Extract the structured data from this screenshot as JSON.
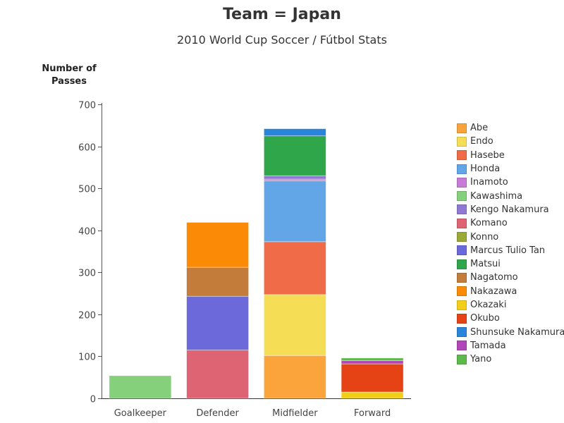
{
  "chart_data": {
    "type": "bar",
    "stacked": true,
    "title": "Team = Japan",
    "subtitle": "2010 World Cup Soccer / Fútbol Stats",
    "ylabel_line1": "Number of",
    "ylabel_line2": "Passes",
    "xlabel": "",
    "ylim": [
      0,
      700
    ],
    "yticks": [
      0,
      100,
      200,
      300,
      400,
      500,
      600,
      700
    ],
    "grid": false,
    "legend_position": "right",
    "categories": [
      "Goalkeeper",
      "Defender",
      "Midfielder",
      "Forward"
    ],
    "series": [
      {
        "name": "Abe",
        "color": "#FBA43C",
        "values": [
          0,
          0,
          102,
          0
        ]
      },
      {
        "name": "Endo",
        "color": "#F5DE55",
        "values": [
          0,
          0,
          145,
          0
        ]
      },
      {
        "name": "Hasebe",
        "color": "#F06C48",
        "values": [
          0,
          0,
          126,
          0
        ]
      },
      {
        "name": "Honda",
        "color": "#62A6E8",
        "values": [
          0,
          0,
          145,
          0
        ]
      },
      {
        "name": "Inamoto",
        "color": "#C77BD6",
        "values": [
          0,
          0,
          4,
          0
        ]
      },
      {
        "name": "Kawashima",
        "color": "#85D07A",
        "values": [
          54,
          0,
          0,
          0
        ]
      },
      {
        "name": "Kengo Nakamura",
        "color": "#9079D2",
        "values": [
          0,
          0,
          8,
          0
        ]
      },
      {
        "name": "Komano",
        "color": "#DE6474",
        "values": [
          0,
          115,
          0,
          0
        ]
      },
      {
        "name": "Konno",
        "color": "#9BAA37",
        "values": [
          0,
          0,
          0,
          0
        ]
      },
      {
        "name": "Marcus Tulio Tan",
        "color": "#6C6ADA",
        "values": [
          0,
          128,
          0,
          0
        ]
      },
      {
        "name": "Matsui",
        "color": "#2FA64A",
        "values": [
          0,
          0,
          95,
          0
        ]
      },
      {
        "name": "Nagatomo",
        "color": "#C47C3A",
        "values": [
          0,
          69,
          0,
          0
        ]
      },
      {
        "name": "Nakazawa",
        "color": "#FB8A07",
        "values": [
          0,
          107,
          0,
          0
        ]
      },
      {
        "name": "Okazaki",
        "color": "#F2CF17",
        "values": [
          0,
          0,
          0,
          15
        ]
      },
      {
        "name": "Okubo",
        "color": "#E54316",
        "values": [
          0,
          0,
          0,
          67
        ]
      },
      {
        "name": "Shunsuke Nakamura",
        "color": "#2985DA",
        "values": [
          0,
          0,
          17,
          0
        ]
      },
      {
        "name": "Tamada",
        "color": "#B146B9",
        "values": [
          0,
          0,
          0,
          8
        ]
      },
      {
        "name": "Yano",
        "color": "#5CB94A",
        "values": [
          0,
          0,
          0,
          6
        ]
      }
    ]
  }
}
